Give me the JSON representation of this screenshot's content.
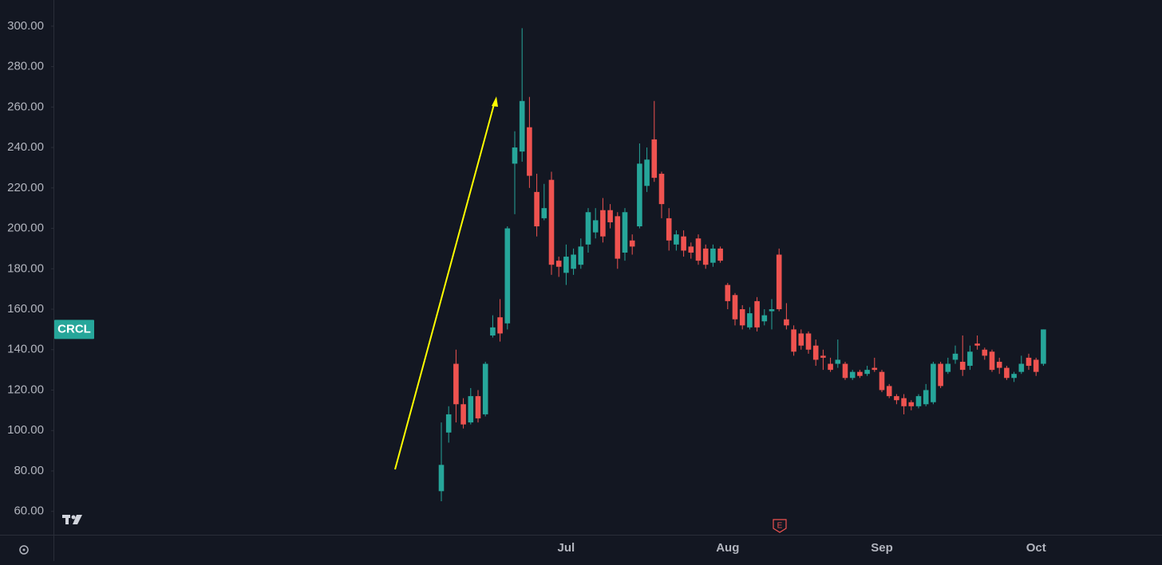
{
  "chart_data": {
    "type": "candlestick",
    "symbol": "CRCL",
    "earnings_marker": "E",
    "categories": [
      null,
      null,
      null,
      null,
      null,
      null,
      null,
      null,
      null,
      null,
      null,
      null,
      null,
      null,
      null,
      null,
      null,
      "Jul",
      null,
      null,
      null,
      null,
      null,
      null,
      null,
      null,
      null,
      null,
      null,
      null,
      null,
      null,
      null,
      null,
      null,
      null,
      null,
      null,
      null,
      "Aug",
      null,
      null,
      null,
      null,
      null,
      null,
      null,
      null,
      null,
      null,
      null,
      null,
      null,
      null,
      null,
      null,
      null,
      null,
      null,
      null,
      "Sep",
      null,
      null,
      null,
      null,
      null,
      null,
      null,
      null,
      null,
      null,
      null,
      null,
      null,
      null,
      null,
      null,
      null,
      null,
      null,
      null,
      "Oct",
      null
    ],
    "open": [
      70,
      99,
      133,
      113,
      104,
      117,
      108,
      147,
      156,
      153,
      232,
      238,
      250,
      218,
      205,
      224,
      184,
      178,
      180,
      182,
      192,
      198,
      209,
      209,
      206,
      188,
      194,
      201,
      221,
      244,
      227,
      205,
      192,
      196,
      191,
      195,
      190,
      183,
      190,
      172,
      167,
      160,
      151,
      164,
      154,
      159,
      187,
      155,
      150,
      148,
      148,
      142,
      137,
      133,
      133,
      133,
      126,
      129,
      128,
      131,
      129,
      122,
      117,
      116,
      114,
      112,
      113,
      114,
      133,
      129,
      135,
      134,
      132,
      143,
      140,
      139,
      134,
      131,
      126,
      129,
      136,
      135,
      133
    ],
    "high": [
      104,
      112,
      140,
      116,
      121,
      120,
      134,
      157,
      165,
      201,
      248,
      299,
      265,
      227,
      222,
      228,
      186,
      192,
      190,
      195,
      210,
      210,
      215,
      212,
      208,
      210,
      197,
      242,
      240,
      263,
      228,
      210,
      199,
      199,
      193,
      197,
      192,
      192,
      191,
      173,
      168,
      162,
      161,
      166,
      160,
      165,
      190,
      163,
      152,
      150,
      149,
      145,
      140,
      136,
      145,
      134,
      130,
      130,
      132,
      136,
      130,
      123,
      118,
      118,
      115,
      118,
      123,
      134,
      134,
      136,
      142,
      147,
      142,
      147,
      141,
      140,
      136,
      132,
      129,
      137,
      138,
      136,
      150
    ],
    "low": [
      65,
      94,
      104,
      101,
      103,
      104,
      107,
      146,
      144,
      150,
      207,
      233,
      220,
      196,
      204,
      177,
      176,
      172,
      177,
      180,
      188,
      195,
      193,
      200,
      180,
      184,
      187,
      200,
      218,
      223,
      205,
      189,
      189,
      186,
      185,
      182,
      180,
      181,
      183,
      160,
      152,
      150,
      150,
      149,
      152,
      150,
      159,
      150,
      137,
      140,
      138,
      132,
      130,
      129,
      131,
      125,
      125,
      126,
      127,
      129,
      119,
      116,
      113,
      108,
      110,
      111,
      112,
      113,
      121,
      128,
      133,
      127,
      130,
      140,
      135,
      129,
      128,
      125,
      124,
      128,
      130,
      127,
      132
    ],
    "close": [
      83,
      108,
      113,
      103,
      117,
      106,
      133,
      151,
      148,
      200,
      240,
      263,
      226,
      201,
      210,
      182,
      181,
      186,
      187,
      191,
      208,
      204,
      196,
      203,
      185,
      208,
      191,
      232,
      234,
      225,
      212,
      194,
      197,
      189,
      188,
      184,
      182,
      190,
      184,
      164,
      155,
      152,
      158,
      151,
      157,
      160,
      160,
      152,
      139,
      142,
      140,
      135,
      136,
      130,
      135,
      126,
      129,
      127,
      130,
      130,
      120,
      117,
      115,
      112,
      112,
      117,
      120,
      133,
      122,
      133,
      138,
      130,
      139,
      142,
      137,
      130,
      131,
      126,
      128,
      133,
      132,
      129,
      150
    ],
    "up_color": "#26a69a",
    "down_color": "#ef5350",
    "ylim": [
      52,
      310
    ],
    "yticks": [
      {
        "value": 60,
        "label": "60.00"
      },
      {
        "value": 80,
        "label": "80.00"
      },
      {
        "value": 100,
        "label": "100.00"
      },
      {
        "value": 120,
        "label": "120.00"
      },
      {
        "value": 140,
        "label": "140.00"
      },
      {
        "value": 160,
        "label": "160.00"
      },
      {
        "value": 180,
        "label": "180.00"
      },
      {
        "value": 200,
        "label": "200.00"
      },
      {
        "value": 220,
        "label": "220.00"
      },
      {
        "value": 240,
        "label": "240.00"
      },
      {
        "value": 260,
        "label": "260.00"
      },
      {
        "value": 280,
        "label": "280.00"
      },
      {
        "value": 300,
        "label": "300.00"
      }
    ],
    "grid": false
  }
}
